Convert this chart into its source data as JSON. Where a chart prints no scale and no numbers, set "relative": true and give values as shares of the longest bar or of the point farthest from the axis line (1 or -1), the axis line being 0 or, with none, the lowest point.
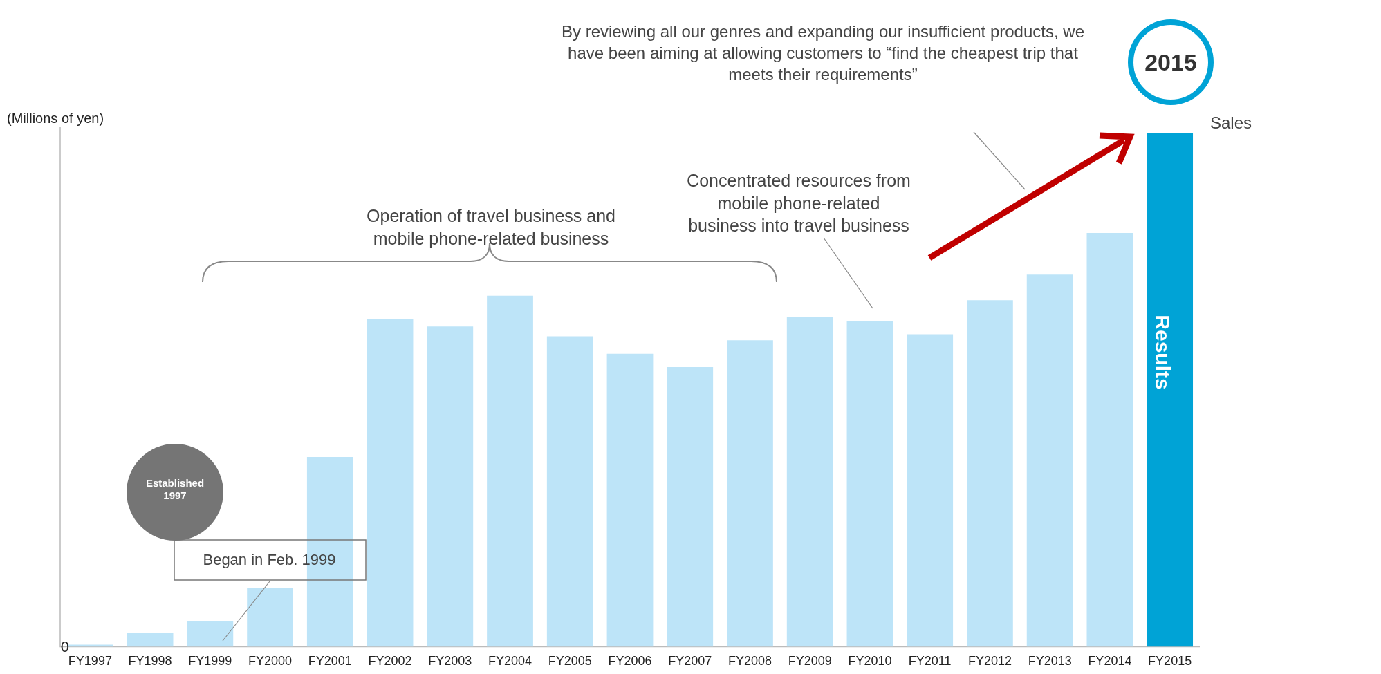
{
  "chart_data": {
    "type": "bar",
    "ylabel": "(Millions of yen)",
    "relative": true,
    "categories": [
      "FY1997",
      "FY1998",
      "FY1999",
      "FY2000",
      "FY2001",
      "FY2002",
      "FY2003",
      "FY2004",
      "FY2005",
      "FY2006",
      "FY2007",
      "FY2008",
      "FY2009",
      "FY2010",
      "FY2011",
      "FY2012",
      "FY2013",
      "FY2014",
      "FY2015"
    ],
    "values": [
      0.004,
      0.026,
      0.049,
      0.114,
      0.369,
      0.638,
      0.623,
      0.683,
      0.604,
      0.57,
      0.544,
      0.596,
      0.642,
      0.633,
      0.608,
      0.674,
      0.724,
      0.805,
      1
    ],
    "colors": [
      "#bde4f8",
      "#bde4f8",
      "#bde4f8",
      "#bde4f8",
      "#bde4f8",
      "#bde4f8",
      "#bde4f8",
      "#bde4f8",
      "#bde4f8",
      "#bde4f8",
      "#bde4f8",
      "#bde4f8",
      "#bde4f8",
      "#bde4f8",
      "#bde4f8",
      "#bde4f8",
      "#bde4f8",
      "#bde4f8",
      "#00a3d6"
    ],
    "annotations": [
      "0",
      "By reviewing all our genres and expanding our insufficient products, we have been aiming at allowing customers to “find the cheapest trip that meets their requirements”",
      "2015",
      "Sales",
      "Operation of travel business and mobile phone-related business",
      "Concentrated resources from mobile phone-related business into travel business",
      "Established 1997",
      "Began in Feb. 1999",
      "Results"
    ]
  }
}
